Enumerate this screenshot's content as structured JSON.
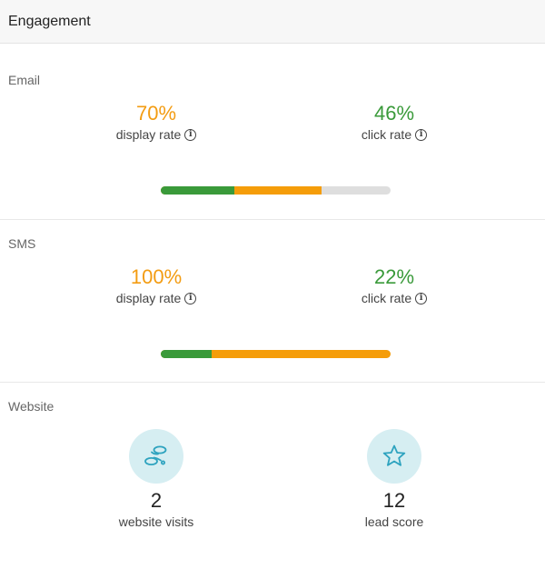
{
  "header": {
    "title": "Engagement"
  },
  "email": {
    "label": "Email",
    "display_rate": "70%",
    "display_label": "display rate",
    "click_rate": "46%",
    "click_label": "click rate",
    "display_fraction": 0.7,
    "click_fraction": 0.322
  },
  "sms": {
    "label": "SMS",
    "display_rate": "100%",
    "display_label": "display rate",
    "click_rate": "22%",
    "click_label": "click rate",
    "display_fraction": 1.0,
    "click_fraction": 0.22
  },
  "website": {
    "label": "Website",
    "visits": "2",
    "visits_label": "website visits",
    "visits_icon": "footprints-icon",
    "lead_score": "12",
    "lead_score_label": "lead score",
    "lead_icon": "star-icon"
  },
  "colors": {
    "orange": "#f39c12",
    "green": "#3a9a3a",
    "track": "#dedede",
    "icon_bg": "#d6eef2",
    "icon_stroke": "#2ea3bf"
  }
}
